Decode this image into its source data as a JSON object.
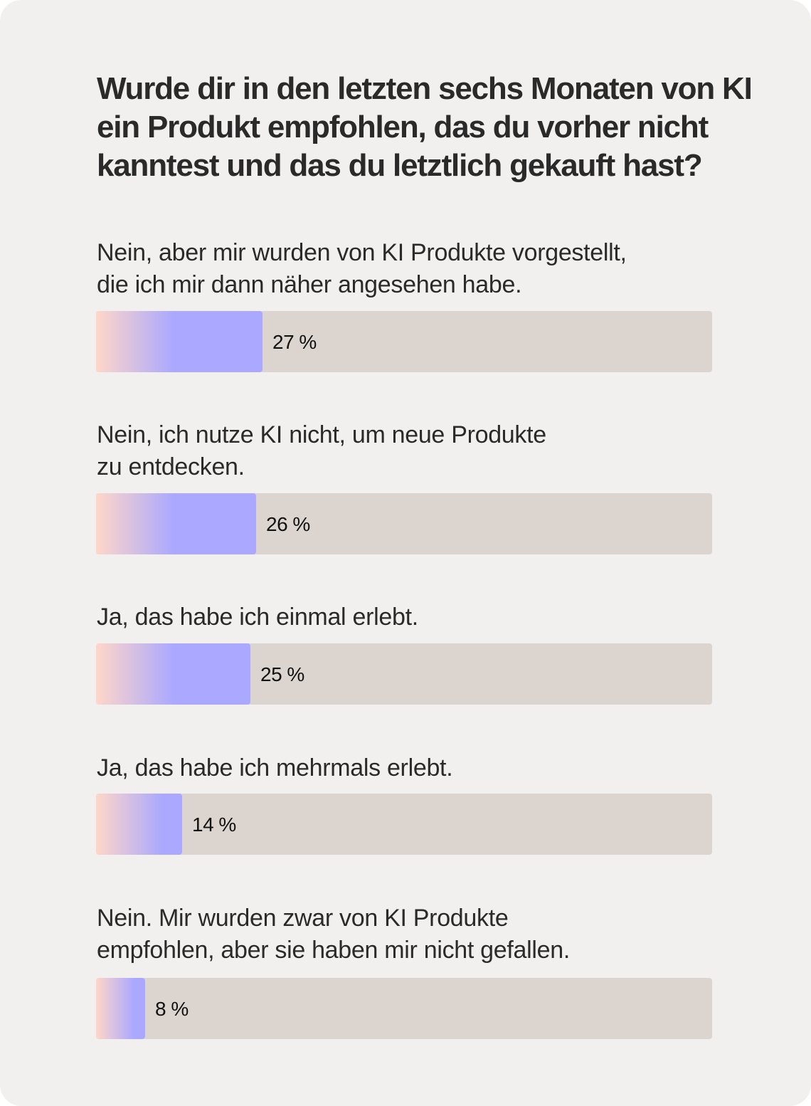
{
  "chart_data": {
    "type": "bar",
    "title": "Wurde dir in den letzten sechs Monaten von KI ein Produkt empfohlen, das du vorher nicht kanntest und das du letztlich gekauft hast?",
    "unit": "%",
    "categories": [
      "Nein, aber mir wurden von KI Produkte vorgestellt, die ich mir dann näher angesehen habe.",
      "Nein, ich nutze KI nicht, um neue Produkte zu entdecken.",
      "Ja, das habe ich einmal erlebt.",
      "Ja, das habe ich mehrmals erlebt.",
      "Nein. Mir wurden zwar von KI Produkte empfohlen, aber sie haben mir nicht gefallen."
    ],
    "values": [
      27,
      26,
      25,
      14,
      8
    ],
    "value_labels": [
      "27 %",
      "26 %",
      "25 %",
      "14 %",
      "8 %"
    ],
    "xlim": [
      0,
      100
    ],
    "colors": {
      "background": "#f1f0ee",
      "track": "#dcd5cf",
      "fill_start": "#ffd6c8",
      "fill_end": "#aaa8ff",
      "text": "#2a2a2a"
    }
  }
}
